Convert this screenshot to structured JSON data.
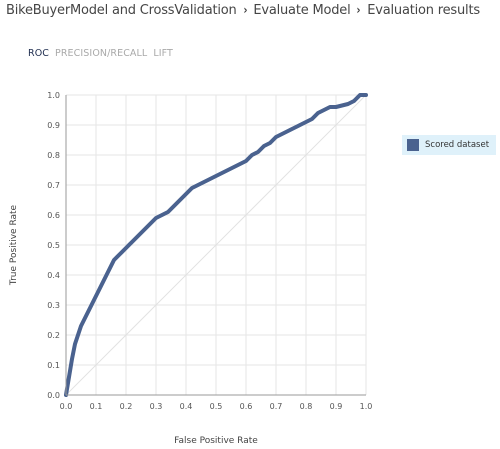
{
  "breadcrumb": {
    "items": [
      "BikeBuyerModel and CrossValidation",
      "Evaluate Model",
      "Evaluation results"
    ],
    "separator": "›"
  },
  "tabs": [
    {
      "label": "ROC",
      "active": true
    },
    {
      "label": "PRECISION/RECALL",
      "active": false
    },
    {
      "label": "LIFT",
      "active": false
    }
  ],
  "chart_data": {
    "type": "line",
    "title": "",
    "xlabel": "False Positive Rate",
    "ylabel": "True Positive Rate",
    "xlim": [
      0,
      1
    ],
    "ylim": [
      0,
      1
    ],
    "xticks": [
      "0.0",
      "0.1",
      "0.2",
      "0.3",
      "0.4",
      "0.5",
      "0.6",
      "0.7",
      "0.8",
      "0.9",
      "1.0"
    ],
    "yticks": [
      "0.0",
      "0.1",
      "0.2",
      "0.3",
      "0.4",
      "0.5",
      "0.6",
      "0.7",
      "0.8",
      "0.9",
      "1.0"
    ],
    "grid": true,
    "legend_position": "right",
    "reference_line": {
      "x": [
        0,
        1
      ],
      "y": [
        0,
        1
      ]
    },
    "series": [
      {
        "name": "Scored dataset",
        "color": "#4a628f",
        "x": [
          0.0,
          0.005,
          0.01,
          0.015,
          0.02,
          0.03,
          0.04,
          0.05,
          0.06,
          0.07,
          0.08,
          0.09,
          0.1,
          0.12,
          0.14,
          0.16,
          0.18,
          0.2,
          0.22,
          0.24,
          0.26,
          0.28,
          0.3,
          0.32,
          0.34,
          0.36,
          0.38,
          0.4,
          0.42,
          0.44,
          0.46,
          0.48,
          0.5,
          0.52,
          0.54,
          0.56,
          0.58,
          0.6,
          0.62,
          0.64,
          0.66,
          0.68,
          0.7,
          0.72,
          0.74,
          0.76,
          0.78,
          0.8,
          0.82,
          0.84,
          0.86,
          0.88,
          0.9,
          0.92,
          0.94,
          0.96,
          0.98,
          1.0
        ],
        "y": [
          0.0,
          0.03,
          0.06,
          0.09,
          0.12,
          0.17,
          0.2,
          0.23,
          0.25,
          0.27,
          0.29,
          0.31,
          0.33,
          0.37,
          0.41,
          0.45,
          0.47,
          0.49,
          0.51,
          0.53,
          0.55,
          0.57,
          0.59,
          0.6,
          0.61,
          0.63,
          0.65,
          0.67,
          0.69,
          0.7,
          0.71,
          0.72,
          0.73,
          0.74,
          0.75,
          0.76,
          0.77,
          0.78,
          0.8,
          0.81,
          0.83,
          0.84,
          0.86,
          0.87,
          0.88,
          0.89,
          0.9,
          0.91,
          0.92,
          0.94,
          0.95,
          0.96,
          0.96,
          0.965,
          0.97,
          0.98,
          1.0,
          1.0
        ]
      }
    ]
  }
}
